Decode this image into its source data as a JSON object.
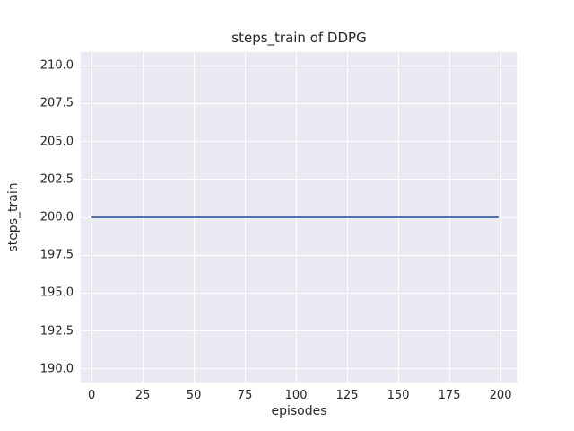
{
  "chart_data": {
    "type": "line",
    "title": "steps_train of DDPG",
    "xlabel": "episodes",
    "ylabel": "steps_train",
    "x_tick_values": [
      0,
      25,
      50,
      75,
      100,
      125,
      150,
      175,
      200
    ],
    "x_tick_labels": [
      "0",
      "25",
      "50",
      "75",
      "100",
      "125",
      "150",
      "175",
      "200"
    ],
    "y_tick_values": [
      190.0,
      192.5,
      195.0,
      197.5,
      200.0,
      202.5,
      205.0,
      207.5,
      210.0
    ],
    "y_tick_labels": [
      "190.0",
      "192.5",
      "195.0",
      "197.5",
      "200.0",
      "202.5",
      "205.0",
      "207.5",
      "210.0"
    ],
    "xlim": [
      -5.3,
      208.3
    ],
    "ylim": [
      189.1,
      210.9
    ],
    "grid": true,
    "legend": "none",
    "plot_background_color": "#EAEAF2",
    "grid_color": "#FFFFFF",
    "text_color": "#262626",
    "series": [
      {
        "name": "steps_train",
        "color": "#4C72B0",
        "x": [
          0,
          199
        ],
        "values": [
          200,
          200
        ]
      }
    ]
  }
}
